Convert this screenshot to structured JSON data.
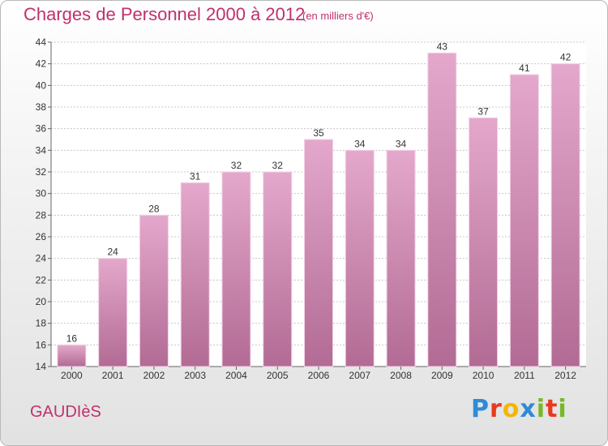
{
  "title": "Charges de Personnel 2000 à 2012",
  "subtitle": "(en milliers d'€)",
  "place": "GAUDIèS",
  "logo": {
    "letters": [
      {
        "ch": "P",
        "color": "#2e8bd6"
      },
      {
        "ch": "r",
        "color": "#e8391e"
      },
      {
        "ch": "o",
        "color": "#f2b705"
      },
      {
        "ch": "x",
        "color": "#2e8bd6"
      },
      {
        "ch": "i",
        "color": "#7ab728"
      },
      {
        "ch": "t",
        "color": "#e8391e"
      },
      {
        "ch": "i",
        "color": "#7ab728"
      }
    ]
  },
  "colors": {
    "bar_top": "#e4a8cc",
    "bar_bottom": "#b26b94",
    "bar_edge": "#f2d2e4",
    "accent": "#c0306e",
    "grid": "#c8c8c8",
    "axis_text": "#333333"
  },
  "chart_data": {
    "type": "bar",
    "title": "Charges de Personnel 2000 à 2012",
    "subtitle": "(en milliers d'€)",
    "categories": [
      "2000",
      "2001",
      "2002",
      "2003",
      "2004",
      "2005",
      "2006",
      "2007",
      "2008",
      "2009",
      "2010",
      "2011",
      "2012"
    ],
    "values": [
      16,
      24,
      28,
      31,
      32,
      32,
      35,
      34,
      34,
      43,
      37,
      41,
      42
    ],
    "ylim": [
      14,
      44
    ],
    "yticks": [
      14,
      16,
      18,
      20,
      22,
      24,
      26,
      28,
      30,
      32,
      34,
      36,
      38,
      40,
      42,
      44
    ],
    "grid": "horizontal dashed",
    "legend": "none"
  }
}
